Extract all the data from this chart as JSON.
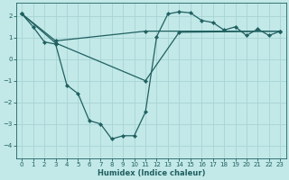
{
  "xlabel": "Humidex (Indice chaleur)",
  "bg_color": "#c2e8e8",
  "line_color": "#206060",
  "grid_color": "#a8d4d4",
  "xlim": [
    -0.5,
    23.5
  ],
  "ylim": [
    -4.6,
    2.6
  ],
  "xticks": [
    0,
    1,
    2,
    3,
    4,
    5,
    6,
    7,
    8,
    9,
    10,
    11,
    12,
    13,
    14,
    15,
    16,
    17,
    18,
    19,
    20,
    21,
    22,
    23
  ],
  "yticks": [
    -4,
    -3,
    -2,
    -1,
    0,
    1,
    2
  ],
  "line1_x": [
    0,
    1,
    2,
    3,
    4,
    5,
    6,
    7,
    8,
    9,
    10,
    11,
    12,
    13,
    14,
    15,
    16,
    17,
    18,
    19,
    20,
    21,
    22,
    23
  ],
  "line1_y": [
    2.1,
    1.5,
    0.8,
    0.7,
    -1.2,
    -1.6,
    -2.85,
    -3.0,
    -3.7,
    -3.55,
    -3.55,
    -2.45,
    1.05,
    2.1,
    2.2,
    2.15,
    1.8,
    1.7,
    1.35,
    1.5,
    1.1,
    1.4,
    1.1,
    1.3
  ],
  "line2_x": [
    0,
    3,
    11,
    14,
    23
  ],
  "line2_y": [
    2.1,
    0.75,
    -1.0,
    1.25,
    1.3
  ],
  "line3_x": [
    0,
    3,
    11,
    23
  ],
  "line3_y": [
    2.1,
    0.85,
    1.3,
    1.3
  ]
}
